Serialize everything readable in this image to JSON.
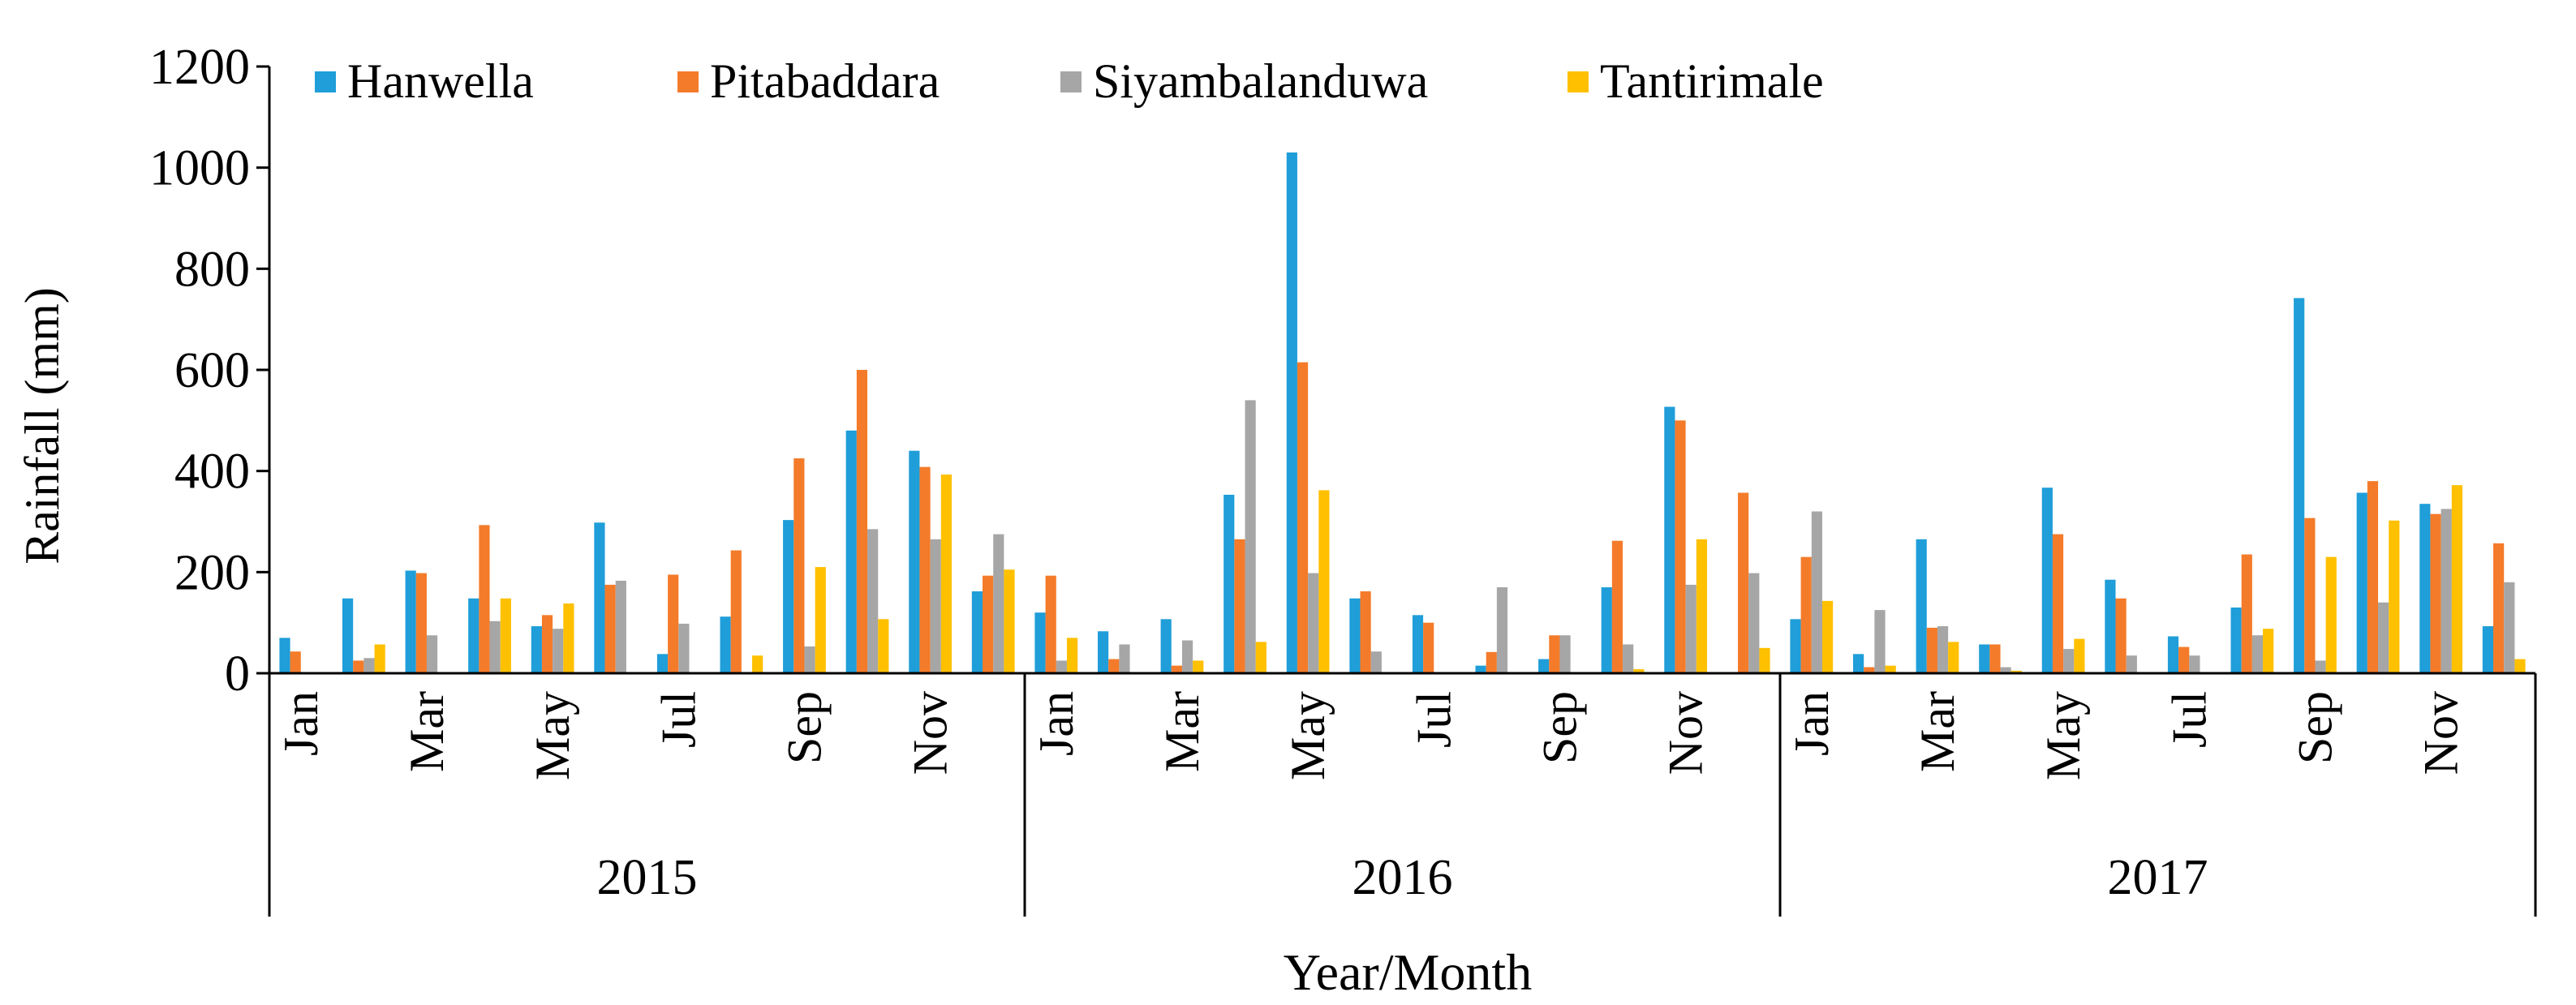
{
  "chart_data": {
    "type": "bar",
    "title": "",
    "xlabel": "Year/Month",
    "ylabel": "Rainfall (mm)",
    "ylim": [
      0,
      1200
    ],
    "yticks": [
      0,
      200,
      400,
      600,
      800,
      1000,
      1200
    ],
    "grid": false,
    "legend_position": "top",
    "years": [
      "2015",
      "2016",
      "2017"
    ],
    "month_labels": [
      "Jan",
      "Mar",
      "May",
      "Jul",
      "Sep",
      "Nov"
    ],
    "categories": [
      "2015-Jan",
      "2015-Feb",
      "2015-Mar",
      "2015-Apr",
      "2015-May",
      "2015-Jun",
      "2015-Jul",
      "2015-Aug",
      "2015-Sep",
      "2015-Oct",
      "2015-Nov",
      "2015-Dec",
      "2016-Jan",
      "2016-Feb",
      "2016-Mar",
      "2016-Apr",
      "2016-May",
      "2016-Jun",
      "2016-Jul",
      "2016-Aug",
      "2016-Sep",
      "2016-Oct",
      "2016-Nov",
      "2016-Dec",
      "2017-Jan",
      "2017-Feb",
      "2017-Mar",
      "2017-Apr",
      "2017-May",
      "2017-Jun",
      "2017-Jul",
      "2017-Aug",
      "2017-Sep",
      "2017-Oct",
      "2017-Nov",
      "2017-Dec"
    ],
    "series": [
      {
        "name": "Hanwella",
        "color": "#1f9ed9",
        "values": [
          70,
          148,
          203,
          148,
          93,
          298,
          38,
          112,
          303,
          480,
          440,
          162,
          120,
          83,
          107,
          353,
          1030,
          148,
          115,
          15,
          28,
          170,
          527,
          0,
          107,
          38,
          265,
          57,
          367,
          185,
          73,
          130,
          742,
          357,
          335,
          93
        ]
      },
      {
        "name": "Pitabaddara",
        "color": "#f47b2a",
        "values": [
          43,
          25,
          198,
          293,
          115,
          175,
          195,
          243,
          425,
          600,
          408,
          193,
          193,
          28,
          15,
          265,
          615,
          162,
          100,
          42,
          75,
          262,
          500,
          357,
          230,
          12,
          90,
          57,
          275,
          148,
          52,
          235,
          307,
          380,
          315,
          257
        ]
      },
      {
        "name": "Siyambalanduwa",
        "color": "#a6a6a6",
        "values": [
          0,
          30,
          75,
          103,
          88,
          183,
          98,
          0,
          53,
          285,
          265,
          275,
          25,
          57,
          65,
          540,
          198,
          43,
          0,
          170,
          75,
          57,
          175,
          198,
          320,
          125,
          93,
          12,
          48,
          35,
          35,
          75,
          25,
          140,
          325,
          180
        ]
      },
      {
        "name": "Tantirimale",
        "color": "#ffc000",
        "values": [
          0,
          57,
          0,
          148,
          138,
          0,
          0,
          35,
          210,
          107,
          393,
          205,
          70,
          0,
          25,
          62,
          362,
          0,
          0,
          0,
          0,
          8,
          265,
          50,
          143,
          15,
          62,
          5,
          68,
          0,
          0,
          88,
          230,
          302,
          372,
          28
        ]
      }
    ]
  }
}
